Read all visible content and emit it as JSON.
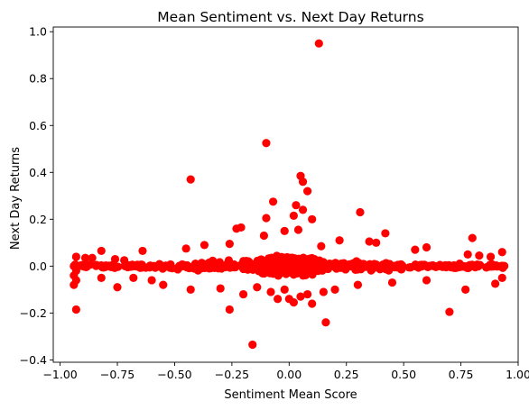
{
  "chart_data": {
    "type": "scatter",
    "title": "Mean Sentiment vs. Next Day Returns",
    "xlabel": "Sentiment Mean Score",
    "ylabel": "Next Day Returns",
    "xlim": [
      -1.03,
      1.0
    ],
    "ylim": [
      -0.41,
      1.02
    ],
    "x_ticks": [
      -1.0,
      -0.75,
      -0.5,
      -0.25,
      0.0,
      0.25,
      0.5,
      0.75,
      1.0
    ],
    "x_tick_labels": [
      "−1.00",
      "−0.75",
      "−0.50",
      "−0.25",
      "0.00",
      "0.25",
      "0.50",
      "0.75",
      "1.00"
    ],
    "y_ticks": [
      -0.4,
      -0.2,
      0.0,
      0.2,
      0.4,
      0.6,
      0.8,
      1.0
    ],
    "y_tick_labels": [
      "−0.4",
      "−0.2",
      "0.0",
      "0.2",
      "0.4",
      "0.6",
      "0.8",
      "1.0"
    ],
    "grid": false,
    "marker_color": "#ff0000",
    "points": [
      [
        0.13,
        0.95
      ],
      [
        -0.1,
        0.525
      ],
      [
        -0.43,
        0.37
      ],
      [
        0.05,
        0.385
      ],
      [
        0.06,
        0.36
      ],
      [
        0.08,
        0.32
      ],
      [
        -0.07,
        0.275
      ],
      [
        0.03,
        0.26
      ],
      [
        0.06,
        0.24
      ],
      [
        0.31,
        0.23
      ],
      [
        0.02,
        0.215
      ],
      [
        -0.1,
        0.205
      ],
      [
        0.1,
        0.2
      ],
      [
        -0.21,
        0.165
      ],
      [
        -0.23,
        0.16
      ],
      [
        0.04,
        0.155
      ],
      [
        -0.02,
        0.15
      ],
      [
        0.42,
        0.14
      ],
      [
        -0.11,
        0.13
      ],
      [
        0.8,
        0.12
      ],
      [
        0.22,
        0.11
      ],
      [
        0.35,
        0.105
      ],
      [
        0.38,
        0.1
      ],
      [
        -0.26,
        0.095
      ],
      [
        -0.37,
        0.09
      ],
      [
        0.14,
        0.085
      ],
      [
        0.6,
        0.08
      ],
      [
        -0.45,
        0.075
      ],
      [
        0.55,
        0.07
      ],
      [
        -0.64,
        0.065
      ],
      [
        -0.82,
        0.065
      ],
      [
        0.93,
        0.06
      ],
      [
        -0.93,
        0.04
      ],
      [
        -0.89,
        0.035
      ],
      [
        -0.86,
        0.035
      ],
      [
        -0.76,
        0.03
      ],
      [
        -0.72,
        0.025
      ],
      [
        0.78,
        0.05
      ],
      [
        0.83,
        0.045
      ],
      [
        0.88,
        0.04
      ],
      [
        -0.94,
        0.0
      ],
      [
        -0.93,
        -0.02
      ],
      [
        -0.94,
        -0.04
      ],
      [
        -0.93,
        -0.06
      ],
      [
        -0.94,
        -0.08
      ],
      [
        -0.93,
        -0.185
      ],
      [
        -0.26,
        -0.185
      ],
      [
        -0.16,
        -0.335
      ],
      [
        0.16,
        -0.24
      ],
      [
        0.7,
        -0.195
      ],
      [
        -0.43,
        -0.1
      ],
      [
        -0.3,
        -0.095
      ],
      [
        -0.75,
        -0.09
      ],
      [
        -0.55,
        -0.08
      ],
      [
        0.77,
        -0.1
      ],
      [
        0.9,
        -0.075
      ],
      [
        0.93,
        -0.05
      ],
      [
        -0.2,
        -0.12
      ],
      [
        0.05,
        -0.13
      ],
      [
        0.02,
        -0.155
      ],
      [
        0.1,
        -0.16
      ],
      [
        -0.05,
        -0.14
      ],
      [
        0.2,
        -0.1
      ],
      [
        -0.14,
        -0.09
      ],
      [
        0.3,
        -0.08
      ],
      [
        0.45,
        -0.07
      ],
      [
        0.6,
        -0.06
      ],
      [
        -0.6,
        -0.06
      ],
      [
        -0.68,
        -0.05
      ],
      [
        -0.82,
        -0.05
      ],
      [
        0.0,
        -0.14
      ],
      [
        0.08,
        -0.12
      ],
      [
        -0.08,
        -0.11
      ],
      [
        0.15,
        -0.11
      ],
      [
        -0.02,
        -0.1
      ]
    ]
  }
}
